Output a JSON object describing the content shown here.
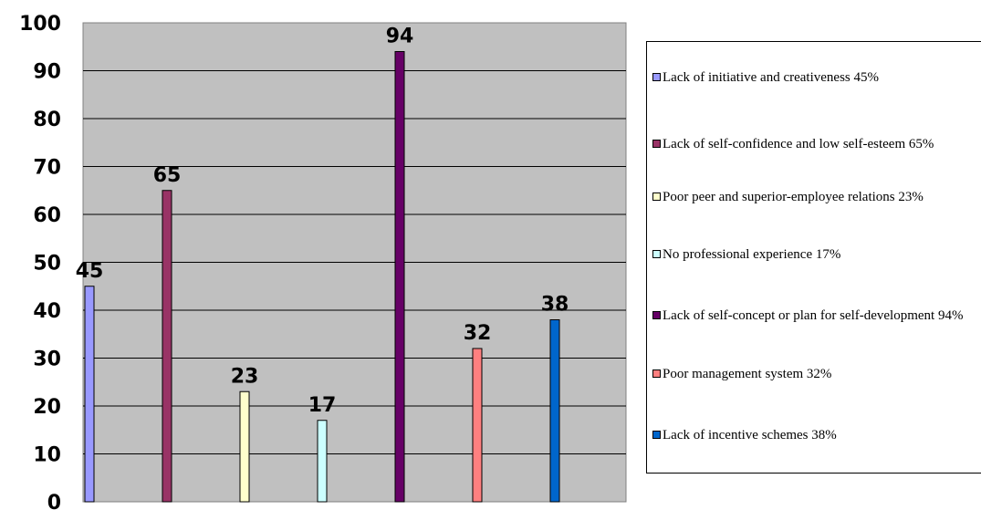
{
  "chart_data": {
    "type": "bar",
    "categories": [
      "Lack of initiative and creativeness 45%",
      "Lack of self-confidence and low self-esteem 65%",
      "Poor peer and superior-employee relations 23%",
      " No professional experience 17%",
      "Lack of self-concept or plan for self-development  94%",
      "Poor management system 32%",
      "Lack of incentive schemes 38%"
    ],
    "values": [
      45,
      65,
      23,
      17,
      94,
      32,
      38
    ],
    "colors": [
      "#9999ff",
      "#993366",
      "#ffffcc",
      "#ccffff",
      "#660066",
      "#ff8080",
      "#0066cc"
    ],
    "ylim": [
      0,
      100
    ],
    "yticks": [
      "0",
      "10",
      "20",
      "30",
      "40",
      "50",
      "60",
      "70",
      "80",
      "90",
      "100"
    ],
    "grid": true,
    "plot_background": "#c0c0c0",
    "legend_position": "right",
    "title": "",
    "xlabel": "",
    "ylabel": ""
  }
}
